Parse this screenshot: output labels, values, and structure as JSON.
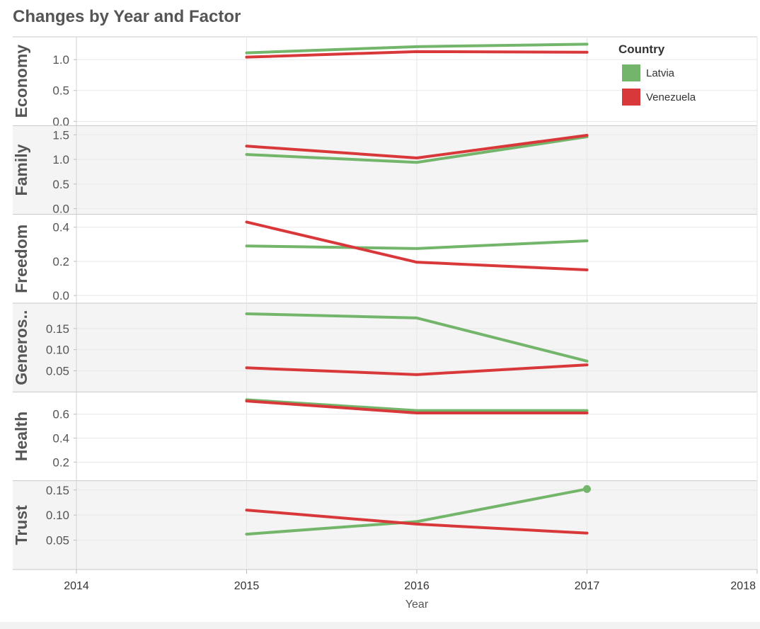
{
  "page": {
    "title": "Changes by Year and Factor"
  },
  "legend": {
    "title": "Country",
    "items": [
      {
        "label": "Latvia",
        "color": "#73b66b"
      },
      {
        "label": "Venezuela",
        "color": "#d9383a"
      }
    ]
  },
  "chart_data": {
    "type": "line",
    "title": "Changes by Year and Factor",
    "xlabel": "Year",
    "x_ticks": [
      2014,
      2015,
      2016,
      2017,
      2018
    ],
    "xlim": [
      2014,
      2018
    ],
    "x": [
      2015,
      2016,
      2017
    ],
    "panels": [
      {
        "factor": "Economy",
        "ylim": [
          0,
          1.3
        ],
        "ticks": [
          "0.0",
          "0.5",
          "1.0"
        ],
        "series": [
          {
            "name": "Latvia",
            "values": [
              1.11,
              1.21,
              1.25
            ]
          },
          {
            "name": "Venezuela",
            "values": [
              1.04,
              1.13,
              1.12
            ]
          }
        ]
      },
      {
        "factor": "Family",
        "ylim": [
          -0.03,
          1.6
        ],
        "ticks": [
          "0.0",
          "0.5",
          "1.0",
          "1.5"
        ],
        "series": [
          {
            "name": "Latvia",
            "values": [
              1.1,
              0.94,
              1.46
            ]
          },
          {
            "name": "Venezuela",
            "values": [
              1.27,
              1.03,
              1.49
            ]
          }
        ]
      },
      {
        "factor": "Freedom",
        "ylim": [
          -0.02,
          0.45
        ],
        "ticks": [
          "0.0",
          "0.2",
          "0.4"
        ],
        "series": [
          {
            "name": "Latvia",
            "values": [
              0.29,
              0.275,
              0.32
            ]
          },
          {
            "name": "Venezuela",
            "values": [
              0.43,
              0.195,
              0.15
            ]
          }
        ]
      },
      {
        "factor": "Generosity",
        "display": "Generos..",
        "ylim": [
          0.01,
          0.2
        ],
        "ticks": [
          "0.05",
          "0.10",
          "0.15"
        ],
        "series": [
          {
            "name": "Latvia",
            "values": [
              0.185,
              0.175,
              0.073
            ]
          },
          {
            "name": "Venezuela",
            "values": [
              0.057,
              0.041,
              0.064
            ]
          }
        ]
      },
      {
        "factor": "Health",
        "ylim": [
          0.08,
          0.75
        ],
        "ticks": [
          "0.2",
          "0.4",
          "0.6"
        ],
        "series": [
          {
            "name": "Latvia",
            "values": [
              0.72,
              0.63,
              0.63
            ]
          },
          {
            "name": "Venezuela",
            "values": [
              0.71,
              0.61,
              0.61
            ]
          }
        ]
      },
      {
        "factor": "Trust",
        "ylim": [
          0.0,
          0.16
        ],
        "ticks": [
          "0.05",
          "0.10",
          "0.15"
        ],
        "series": [
          {
            "name": "Latvia",
            "values": [
              0.062,
              0.087,
              0.152
            ]
          },
          {
            "name": "Venezuela",
            "values": [
              0.11,
              0.082,
              0.064
            ]
          }
        ]
      }
    ],
    "highlight": {
      "factor": "Trust",
      "series": "Latvia",
      "x": 2017,
      "value": 0.152
    }
  }
}
